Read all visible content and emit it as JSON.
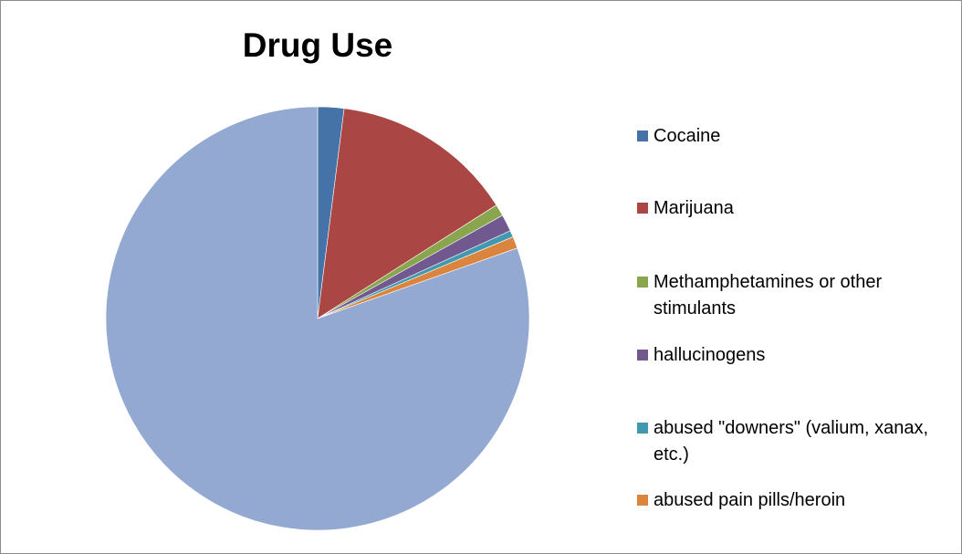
{
  "chart_data": {
    "type": "pie",
    "title": "Drug Use",
    "legend_position": "right",
    "start_angle": "top, clockwise",
    "slices": [
      {
        "label": "Cocaine",
        "value": 2.0,
        "color": "#4572a7"
      },
      {
        "label": "Marijuana",
        "value": 14.0,
        "color": "#aa4643"
      },
      {
        "label": "Methamphetamines or other stimulants",
        "value": 0.9,
        "color": "#89a54e"
      },
      {
        "label": "hallucinogens",
        "value": 1.3,
        "color": "#71588f"
      },
      {
        "label": "abused \"downers\" (valium, xanax, etc.)",
        "value": 0.5,
        "color": "#4198af"
      },
      {
        "label": "abused pain pills/heroin",
        "value": 0.9,
        "color": "#db843d"
      },
      {
        "label": "",
        "value": 80.4,
        "color": "#93a9d2"
      }
    ]
  }
}
